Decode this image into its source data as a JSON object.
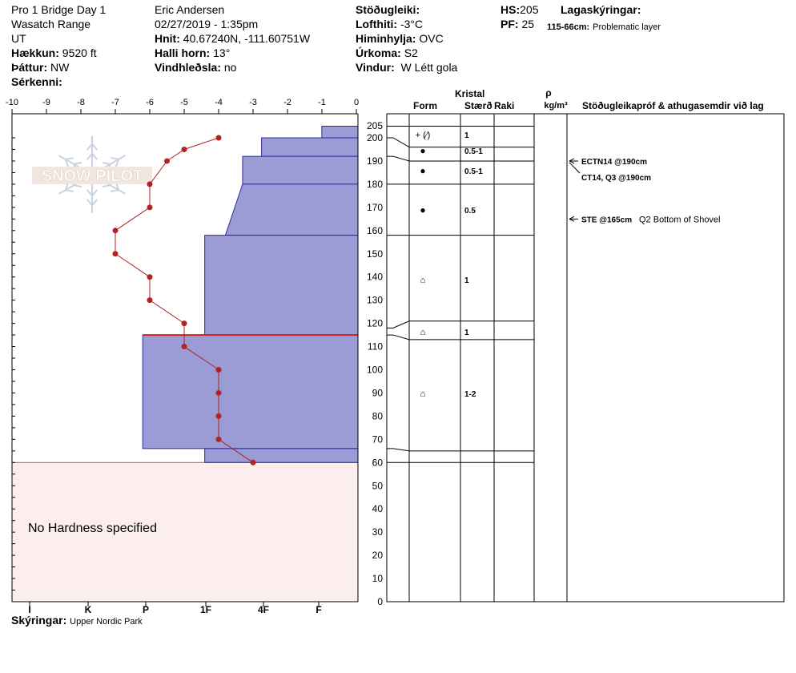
{
  "header": {
    "col1": [
      "Pro 1 Bridge Day 1",
      "Wasatch Range",
      "UT"
    ],
    "elevation_label": "Hækkun:",
    "elevation_value": "9520 ft",
    "aspect_label": "Þáttur:",
    "aspect_value": "NW",
    "features_label": "Sérkenni:",
    "observer": "Eric Andersen",
    "datetime": "02/27/2019 - 1:35pm",
    "coords_label": "Hnit:",
    "coords_value": "40.67240N, -111.60751W",
    "slope_label": "Halli horn:",
    "slope_value": "13°",
    "wind_loading_label": "Vindhleðsla:",
    "wind_loading_value": "no",
    "stability_label": "Stöðugleiki:",
    "air_temp_label": "Lofthiti:",
    "air_temp_value": "-3°C",
    "sky_label": "Himinhylja:",
    "sky_value": "OVC",
    "precip_label": "Úrkoma:",
    "precip_value": "S2",
    "wind_label": "Vindur:",
    "wind_value": "W Létt gola",
    "hs_label": "HS:",
    "hs_value": "205",
    "pf_label": "PF:",
    "pf_value": "25",
    "layer_notes_label": "Lagaskýringar:",
    "layer_note_range": "115-66cm:",
    "layer_note_text": "Problematic layer"
  },
  "footer": {
    "notes_label": "Skýringar:",
    "notes_value": "Upper Nordic Park"
  },
  "logo_text": "SNOW PILOT",
  "colors": {
    "hardness_fill": "#9b9bd6",
    "hardness_stroke": "#2a2aa0",
    "temp_line": "#b22222",
    "no_hardness_fill": "#fdeeee",
    "no_hardness_stroke": "#c05050",
    "problem_line": "#cc2222"
  },
  "chart_data": {
    "type": "snow_profile",
    "temp_axis": {
      "ticks": [
        "-10",
        "-9",
        "-8",
        "-7",
        "-6",
        "-5",
        "-4",
        "-3",
        "-2",
        "-1",
        "0"
      ],
      "range": [
        -10,
        0
      ]
    },
    "hardness_axis": {
      "ticks": [
        "I",
        "K",
        "P",
        "1F",
        "4F",
        "F"
      ]
    },
    "depth_axis": {
      "ticks": [
        "0",
        "10",
        "20",
        "30",
        "40",
        "50",
        "60",
        "70",
        "80",
        "90",
        "100",
        "110",
        "120",
        "130",
        "140",
        "150",
        "160",
        "170",
        "180",
        "190",
        "200",
        "205"
      ],
      "range": [
        0,
        205
      ]
    },
    "temperature_profile": [
      {
        "depth": 200,
        "temp": -4
      },
      {
        "depth": 195,
        "temp": -5
      },
      {
        "depth": 190,
        "temp": -5.5
      },
      {
        "depth": 180,
        "temp": -6
      },
      {
        "depth": 170,
        "temp": -6
      },
      {
        "depth": 160,
        "temp": -7
      },
      {
        "depth": 150,
        "temp": -7
      },
      {
        "depth": 140,
        "temp": -6
      },
      {
        "depth": 130,
        "temp": -6
      },
      {
        "depth": 120,
        "temp": -5
      },
      {
        "depth": 110,
        "temp": -5
      },
      {
        "depth": 100,
        "temp": -4
      },
      {
        "depth": 90,
        "temp": -4
      },
      {
        "depth": 80,
        "temp": -4
      },
      {
        "depth": 70,
        "temp": -4
      },
      {
        "depth": 60,
        "temp": -3
      }
    ],
    "hardness_layers": [
      {
        "top": 205,
        "bottom": 200,
        "hardness_top": 1.05,
        "hardness_bottom": 1.05
      },
      {
        "top": 200,
        "bottom": 192,
        "hardness_top": 2.8,
        "hardness_bottom": 2.8
      },
      {
        "top": 192,
        "bottom": 180,
        "hardness_top": 3.35,
        "hardness_bottom": 3.35
      },
      {
        "top": 180,
        "bottom": 158,
        "hardness_top": 3.35,
        "hardness_bottom": 3.85
      },
      {
        "top": 158,
        "bottom": 115,
        "hardness_top": 4.45,
        "hardness_bottom": 4.45
      },
      {
        "top": 115,
        "bottom": 66,
        "hardness_top": 6.25,
        "hardness_bottom": 6.25
      },
      {
        "top": 66,
        "bottom": 60,
        "hardness_top": 4.45,
        "hardness_bottom": 4.45
      }
    ],
    "problem_layer_depth": 115,
    "no_hardness": {
      "top": 60,
      "bottom": 0,
      "label": "No Hardness specified"
    },
    "layer_table_headers": {
      "crystal": "Kristal",
      "form": "Form",
      "size": "Stærð",
      "moisture": "Raki",
      "density_symbol": "ρ",
      "density_unit": "kg/m³",
      "tests": "Stöðugleikapróf & athugasemdir við lag"
    },
    "layers": [
      {
        "top": 205,
        "bottom": 200,
        "form": "",
        "size": ""
      },
      {
        "top": 200,
        "bottom": 192,
        "form": "+ (⁄)",
        "size": "1"
      },
      {
        "top": 192,
        "bottom": 180,
        "form": "●",
        "size": "0.5-1"
      },
      {
        "top": 180,
        "bottom": 158,
        "form": "●",
        "size": "0.5-1"
      },
      {
        "top": 158,
        "bottom": 118,
        "form": "●",
        "size": "0.5"
      },
      {
        "top": 118,
        "bottom": 115,
        "form": "⌂",
        "size": "1"
      },
      {
        "top": 115,
        "bottom": 66,
        "form": "⌂",
        "size": "1"
      },
      {
        "top": 66,
        "bottom": 60,
        "form": "⌂",
        "size": "1-2"
      }
    ],
    "tests": [
      {
        "depth": 190,
        "text_bold": "ECTN14 @190cm",
        "text": ""
      },
      {
        "depth": 190,
        "text_bold": "CT14, Q3 @190cm",
        "text": ""
      },
      {
        "depth": 165,
        "text_bold": "STE @165cm",
        "text": "Q2 Bottom of Shovel"
      }
    ]
  }
}
